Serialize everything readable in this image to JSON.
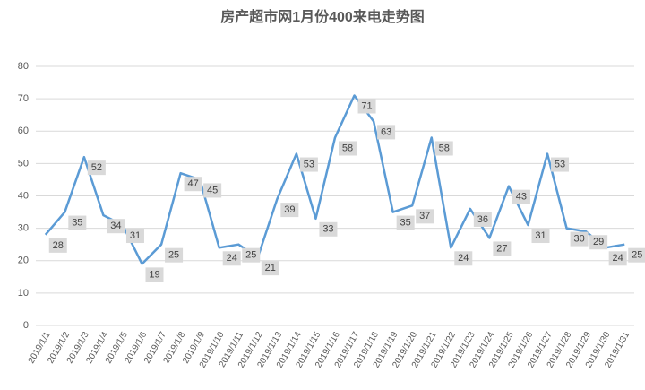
{
  "chart_data": {
    "type": "line",
    "title": "房产超市网1月份400来电走势图",
    "categories": [
      "2019/1/1",
      "2019/1/2",
      "2019/1/3",
      "2019/1/4",
      "2019/1/5",
      "2019/1/6",
      "2019/1/7",
      "2019/1/8",
      "2019/1/9",
      "2019/1/10",
      "2019/1/11",
      "2019/1/12",
      "2019/1/13",
      "2019/1/14",
      "2019/1/15",
      "2019/1/16",
      "2019/1/17",
      "2019/1/18",
      "2019/1/19",
      "2019/1/20",
      "2019/1/21",
      "2019/1/22",
      "2019/1/23",
      "2019/1/24",
      "2019/1/25",
      "2019/1/26",
      "2019/1/27",
      "2019/1/28",
      "2019/1/29",
      "2019/1/30",
      "2019/1/31"
    ],
    "values": [
      28,
      35,
      52,
      34,
      31,
      19,
      25,
      47,
      45,
      24,
      25,
      21,
      39,
      53,
      33,
      58,
      71,
      63,
      35,
      37,
      58,
      24,
      36,
      27,
      43,
      31,
      53,
      30,
      29,
      24,
      25
    ],
    "color": "#5b9bd5",
    "ylim": [
      0,
      80
    ],
    "yticks": [
      0,
      10,
      20,
      30,
      40,
      50,
      60,
      70,
      80
    ],
    "grid": true
  }
}
